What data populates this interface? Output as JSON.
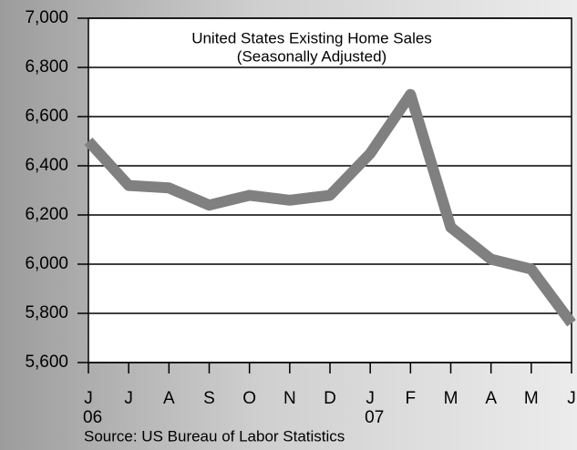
{
  "chart_data": {
    "type": "line",
    "title": "United States Existing Home Sales",
    "subtitle": "(Seasonally Adjusted)",
    "source": "Source: US Bureau of Labor Statistics",
    "categories": [
      "J",
      "J",
      "A",
      "S",
      "O",
      "N",
      "D",
      "J",
      "F",
      "M",
      "A",
      "M",
      "J"
    ],
    "year_labels": [
      "06",
      null,
      null,
      null,
      null,
      null,
      null,
      "07",
      null,
      null,
      null,
      null,
      null
    ],
    "series": [
      {
        "name": "Existing Home Sales",
        "color": "#808080",
        "values": [
          6500,
          6320,
          6310,
          6240,
          6280,
          6260,
          6280,
          6450,
          6690,
          6150,
          6020,
          5980,
          5760
        ]
      }
    ],
    "ylim": [
      5600,
      7000
    ],
    "yticks": [
      {
        "value": 5600,
        "label": "5,600"
      },
      {
        "value": 5800,
        "label": "5,800"
      },
      {
        "value": 6000,
        "label": "6,000"
      },
      {
        "value": 6200,
        "label": "6,200"
      },
      {
        "value": 6400,
        "label": "6,400"
      },
      {
        "value": 6600,
        "label": "6,600"
      },
      {
        "value": 6800,
        "label": "6,800"
      },
      {
        "value": 7000,
        "label": "7,000"
      }
    ],
    "grid": true
  }
}
